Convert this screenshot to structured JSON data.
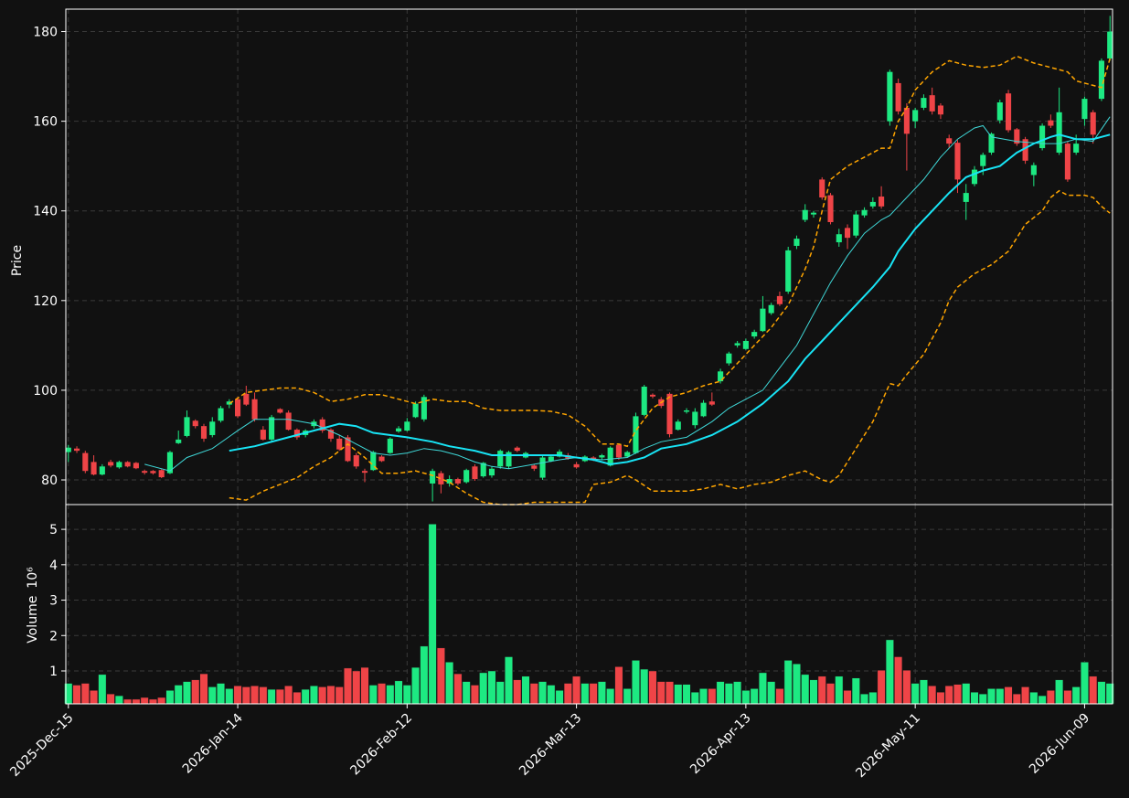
{
  "chart_data": [
    {
      "type": "candlestick",
      "ylabel": "Price",
      "categories": [
        "2025-Dec-15",
        null,
        null,
        null,
        null,
        null,
        null,
        null,
        null,
        null,
        null,
        null,
        null,
        null,
        null,
        null,
        null,
        null,
        null,
        null,
        "2026-Jan-14",
        null,
        null,
        null,
        null,
        null,
        null,
        null,
        null,
        null,
        null,
        null,
        null,
        null,
        null,
        null,
        null,
        null,
        null,
        null,
        "2026-Feb-12",
        null,
        null,
        null,
        null,
        null,
        null,
        null,
        null,
        null,
        null,
        null,
        null,
        null,
        null,
        null,
        null,
        null,
        null,
        null,
        "2026-Mar-13",
        null,
        null,
        null,
        null,
        null,
        null,
        null,
        null,
        null,
        null,
        null,
        null,
        null,
        null,
        null,
        null,
        null,
        null,
        null,
        "2026-Apr-13",
        null,
        null,
        null,
        null,
        null,
        null,
        null,
        null,
        null,
        null,
        null,
        null,
        null,
        null,
        null,
        null,
        null,
        null,
        null,
        "2026-May-11",
        null,
        null,
        null,
        null,
        null,
        null,
        null,
        null,
        null,
        null,
        null,
        null,
        null,
        null,
        null,
        null,
        null,
        null,
        null,
        "2026-Jun-09",
        null,
        null,
        null
      ],
      "open": [
        86.2,
        87.0,
        86.0,
        84.0,
        81.2,
        84.0,
        82.8,
        84.0,
        83.8,
        82.0,
        82.0,
        82.2,
        81.5,
        88.2,
        89.8,
        93.2,
        92.0,
        90.0,
        93.2,
        96.8,
        98.0,
        99.2,
        98.0,
        91.2,
        89.0,
        95.8,
        95.0,
        91.2,
        90.0,
        92.0,
        93.5,
        91.2,
        89.2,
        89.5,
        85.5,
        82.0,
        82.2,
        85.2,
        86.0,
        90.8,
        91.0,
        94.0,
        93.5,
        79.2,
        81.5,
        79.2,
        80.2,
        79.5,
        83.0,
        80.8,
        81.0,
        83.0,
        83.0,
        87.2,
        85.0,
        83.2,
        80.5,
        84.2,
        85.2,
        85.5,
        83.5,
        84.2,
        85.0,
        85.0,
        83.2,
        87.8,
        85.2,
        86.0,
        94.5,
        99.0,
        98.0,
        99.2,
        91.2,
        95.2,
        92.2,
        94.2,
        97.5,
        102.0,
        106.0,
        110.0,
        109.2,
        112.0,
        113.2,
        117.2,
        121.0,
        122.0,
        132.2,
        138.0,
        139.2,
        147.0,
        143.5,
        133.0,
        136.2,
        134.5,
        139.0,
        141.0,
        143.2,
        160.0,
        168.5,
        163.0,
        160.0,
        163.0,
        165.8,
        163.5,
        156.2,
        155.2,
        142.0,
        146.0,
        150.0,
        153.0,
        160.2,
        166.2,
        158.2,
        156.0,
        148.0,
        154.0,
        160.2,
        153.0,
        155.0,
        153.0,
        160.5,
        162.0,
        165.0,
        174.0
      ],
      "high": [
        87.8,
        87.5,
        86.5,
        85.5,
        83.5,
        84.5,
        84.3,
        84.2,
        84.0,
        82.3,
        82.2,
        82.4,
        86.5,
        91.0,
        95.5,
        93.5,
        92.5,
        94.0,
        96.5,
        98.0,
        98.5,
        101.0,
        99.5,
        92.0,
        94.5,
        96.0,
        95.5,
        91.5,
        91.3,
        93.5,
        94.0,
        91.5,
        90.0,
        90.0,
        86.0,
        82.5,
        86.5,
        85.5,
        89.5,
        92.0,
        93.8,
        97.5,
        99.0,
        82.5,
        82.0,
        81.0,
        80.5,
        82.5,
        83.5,
        84.0,
        83.0,
        86.8,
        86.5,
        87.5,
        86.3,
        83.5,
        85.5,
        85.5,
        86.8,
        86.0,
        84.0,
        85.5,
        85.3,
        85.8,
        87.5,
        88.0,
        86.5,
        95.0,
        101.2,
        99.3,
        98.5,
        99.5,
        93.5,
        96.0,
        96.0,
        97.8,
        99.5,
        104.8,
        108.6,
        111.0,
        111.5,
        113.5,
        121.0,
        119.5,
        122.0,
        132.0,
        134.5,
        141.5,
        140.0,
        147.5,
        144.0,
        136.0,
        137.0,
        140.0,
        140.8,
        143.0,
        145.5,
        171.5,
        169.5,
        164.0,
        163.0,
        166.0,
        167.5,
        164.0,
        157.0,
        155.8,
        146.0,
        150.0,
        153.0,
        157.5,
        164.8,
        167.0,
        158.5,
        156.5,
        150.8,
        159.5,
        161.5,
        167.5,
        155.5,
        157.0,
        165.5,
        162.5,
        174.0,
        183.5
      ],
      "low": [
        84.0,
        86.0,
        81.5,
        81.0,
        81.0,
        82.8,
        82.5,
        82.8,
        82.4,
        81.2,
        81.2,
        80.4,
        81.3,
        88.0,
        89.5,
        91.5,
        88.5,
        89.5,
        92.8,
        96.0,
        93.8,
        96.5,
        93.0,
        88.8,
        88.5,
        94.8,
        91.0,
        89.0,
        89.5,
        91.5,
        90.5,
        88.5,
        86.5,
        84.0,
        82.5,
        79.5,
        82.0,
        84.0,
        85.8,
        90.5,
        90.8,
        93.8,
        93.0,
        75.2,
        77.0,
        78.5,
        78.8,
        79.2,
        79.8,
        80.5,
        80.5,
        82.5,
        82.5,
        86.2,
        84.8,
        82.0,
        80.0,
        84.0,
        85.0,
        84.5,
        82.5,
        84.0,
        84.2,
        84.5,
        83.0,
        84.5,
        85.0,
        85.8,
        94.2,
        98.2,
        96.0,
        89.5,
        91.0,
        94.8,
        91.5,
        94.0,
        96.5,
        101.5,
        105.5,
        109.5,
        109.0,
        111.5,
        113.0,
        116.8,
        118.8,
        121.5,
        131.5,
        137.5,
        138.5,
        142.5,
        137.0,
        132.0,
        131.5,
        134.0,
        138.5,
        140.5,
        140.5,
        159.0,
        161.5,
        149.0,
        158.5,
        162.5,
        161.5,
        160.5,
        154.0,
        144.0,
        138.0,
        145.5,
        148.0,
        152.5,
        159.5,
        157.5,
        154.5,
        150.5,
        145.5,
        153.5,
        158.5,
        152.5,
        146.5,
        152.5,
        159.0,
        155.0,
        164.5,
        173.5
      ],
      "close": [
        87.2,
        86.5,
        82.0,
        81.2,
        83.0,
        83.2,
        84.0,
        83.0,
        82.6,
        81.6,
        81.5,
        80.6,
        86.2,
        89.0,
        94.0,
        92.0,
        89.2,
        93.0,
        96.0,
        97.5,
        94.2,
        96.8,
        93.5,
        89.0,
        94.0,
        95.0,
        91.2,
        89.5,
        91.0,
        93.0,
        91.0,
        89.2,
        86.8,
        84.2,
        83.0,
        81.6,
        86.2,
        84.2,
        89.2,
        91.5,
        93.0,
        97.0,
        98.5,
        82.0,
        79.0,
        80.2,
        79.2,
        82.2,
        80.2,
        83.8,
        82.5,
        86.5,
        86.2,
        86.5,
        86.0,
        82.5,
        85.0,
        85.2,
        86.3,
        84.8,
        82.8,
        85.2,
        84.5,
        85.5,
        87.2,
        85.0,
        86.2,
        94.2,
        100.8,
        98.6,
        96.5,
        90.2,
        93.0,
        95.5,
        95.2,
        97.2,
        96.8,
        104.2,
        108.2,
        110.5,
        111.0,
        113.0,
        118.2,
        119.0,
        119.2,
        131.2,
        133.8,
        140.2,
        139.6,
        143.0,
        137.5,
        134.8,
        134.0,
        139.2,
        140.2,
        142.0,
        141.0,
        171.0,
        162.2,
        157.2,
        162.5,
        165.2,
        162.2,
        161.5,
        155.0,
        147.0,
        144.0,
        149.2,
        152.5,
        157.2,
        164.2,
        158.0,
        155.0,
        151.2,
        150.2,
        159.0,
        159.0,
        162.0,
        147.0,
        155.0,
        165.0,
        157.0,
        173.5,
        180.0
      ],
      "up_color": "#1de982",
      "down_color": "#ef4447",
      "xlim": [
        -0.3,
        123.3
      ],
      "ylim": [
        74.5,
        185
      ],
      "yticks": [
        80,
        100,
        120,
        140,
        160,
        180
      ],
      "grid": true,
      "overlays": [
        {
          "color": "#3fd8d8",
          "width": 1,
          "dash": false,
          "x": [
            9,
            12,
            14,
            17,
            20,
            22,
            26,
            29,
            32,
            34,
            36,
            38,
            40,
            42,
            44,
            46,
            48,
            50,
            52,
            55,
            58,
            60,
            63,
            66,
            68,
            70,
            73,
            76,
            78,
            80,
            82,
            84,
            86,
            88,
            90,
            92,
            94,
            96,
            97,
            99,
            101,
            103,
            105,
            107,
            108,
            109,
            112,
            115,
            117,
            119,
            121,
            123
          ],
          "values": [
            83.5,
            82,
            85,
            87,
            91,
            93.5,
            93.5,
            92.5,
            90,
            88,
            86,
            85.5,
            86,
            87,
            86.5,
            85.5,
            84,
            83,
            82.5,
            83.5,
            84.5,
            85,
            84.5,
            85,
            87,
            88.5,
            89.5,
            93,
            96,
            98,
            100,
            105,
            110,
            117,
            124,
            130,
            135,
            138,
            139,
            143,
            147,
            152,
            156,
            158.5,
            159,
            156.5,
            155.5,
            155,
            155,
            156,
            155.5,
            161
          ]
        },
        {
          "color": "#18e4f5",
          "width": 2,
          "dash": false,
          "x": [
            19,
            22,
            26,
            30,
            32,
            34,
            36,
            40,
            43,
            45,
            48,
            50,
            54,
            58,
            62,
            64,
            66,
            68,
            70,
            73,
            76,
            79,
            82,
            85,
            87,
            89,
            91,
            93,
            95,
            97,
            98,
            100,
            102,
            104,
            106,
            108,
            110,
            112,
            114,
            116,
            117,
            119,
            121,
            123
          ],
          "values": [
            86.5,
            87.5,
            89.5,
            91.5,
            92.5,
            92,
            90.5,
            89.5,
            88.5,
            87.5,
            86.5,
            85.5,
            85.5,
            85.5,
            84.5,
            83.5,
            84,
            85,
            87,
            88,
            90,
            93,
            97,
            102,
            107,
            111,
            115,
            119,
            123,
            127.5,
            131,
            136,
            140,
            144,
            147.5,
            149,
            150,
            153,
            155,
            156.5,
            157,
            156,
            156,
            157
          ]
        },
        {
          "color": "#ffa500",
          "width": 1.5,
          "dash": true,
          "x": [
            19,
            21,
            23,
            25,
            27,
            29,
            31,
            33,
            35,
            37,
            39,
            41,
            43,
            45,
            47,
            49,
            51,
            53,
            55,
            57,
            59,
            61,
            63,
            65,
            66,
            67,
            69,
            71,
            73,
            75,
            77,
            79,
            81,
            83,
            85,
            87,
            88,
            89,
            90,
            92,
            94,
            96,
            97,
            98,
            99,
            100,
            102,
            104,
            106,
            108,
            110,
            112,
            114,
            116,
            118,
            119,
            121,
            122,
            123
          ],
          "values": [
            97,
            99.5,
            100,
            100.5,
            100.5,
            99.5,
            97.5,
            98,
            99,
            99,
            98,
            97,
            98,
            97.5,
            97.5,
            96,
            95.5,
            95.5,
            95.5,
            95.3,
            94.5,
            92,
            88,
            88,
            87.5,
            91,
            96,
            98.5,
            99.5,
            101,
            102,
            106,
            110,
            114,
            119,
            127,
            132,
            140,
            147,
            150,
            152,
            154,
            154,
            160,
            163,
            167,
            171,
            173.5,
            172.5,
            172,
            172.5,
            174.5,
            173,
            172,
            171,
            169,
            168,
            167.5,
            174
          ]
        },
        {
          "color": "#ffa500",
          "width": 1.5,
          "dash": true,
          "x": [
            19,
            21,
            23,
            25,
            27,
            29,
            31,
            33,
            35,
            37,
            39,
            41,
            43,
            45,
            47,
            49,
            51,
            53,
            55,
            57,
            59,
            61,
            62,
            64,
            66,
            67,
            69,
            71,
            73,
            75,
            77,
            79,
            81,
            83,
            85,
            87,
            89,
            90,
            91,
            93,
            95,
            97,
            98,
            99,
            101,
            103,
            104,
            105,
            107,
            109,
            111,
            113,
            115,
            116,
            117,
            118,
            120,
            121,
            122,
            123
          ],
          "values": [
            76,
            75.5,
            77.5,
            79,
            80.5,
            83,
            85,
            88,
            85,
            81.5,
            81.5,
            82,
            81,
            79.5,
            77,
            75,
            74.5,
            74.5,
            75,
            75,
            75,
            75,
            79,
            79.5,
            81,
            80,
            77.5,
            77.5,
            77.5,
            78,
            79,
            78,
            79,
            79.5,
            81,
            82,
            80,
            79.5,
            81,
            87,
            93,
            101.5,
            101,
            103.5,
            108,
            115,
            120,
            123,
            126,
            128,
            131,
            137,
            140,
            143,
            144.5,
            143.5,
            143.5,
            143,
            141,
            139.5
          ]
        }
      ]
    },
    {
      "type": "bar",
      "ylabel": "Volume",
      "scale_label": "10⁶",
      "values": [
        0.65,
        0.6,
        0.65,
        0.45,
        0.9,
        0.35,
        0.3,
        0.2,
        0.2,
        0.25,
        0.2,
        0.25,
        0.45,
        0.6,
        0.7,
        0.75,
        0.92,
        0.55,
        0.65,
        0.5,
        0.58,
        0.55,
        0.58,
        0.55,
        0.48,
        0.48,
        0.58,
        0.4,
        0.48,
        0.58,
        0.55,
        0.58,
        0.55,
        1.08,
        1.0,
        1.1,
        0.6,
        0.65,
        0.6,
        0.72,
        0.6,
        1.1,
        1.7,
        5.15,
        1.65,
        1.25,
        0.92,
        0.7,
        0.6,
        0.95,
        1.0,
        0.7,
        1.4,
        0.75,
        0.85,
        0.65,
        0.7,
        0.6,
        0.45,
        0.65,
        0.85,
        0.65,
        0.65,
        0.7,
        0.5,
        1.12,
        0.5,
        1.3,
        1.05,
        1.0,
        0.7,
        0.7,
        0.62,
        0.62,
        0.4,
        0.5,
        0.5,
        0.7,
        0.65,
        0.7,
        0.45,
        0.5,
        0.95,
        0.7,
        0.5,
        1.3,
        1.2,
        0.9,
        0.75,
        0.85,
        0.65,
        0.85,
        0.45,
        0.8,
        0.35,
        0.4,
        1.02,
        1.88,
        1.4,
        1.02,
        0.65,
        0.75,
        0.58,
        0.4,
        0.58,
        0.62,
        0.65,
        0.4,
        0.35,
        0.5,
        0.5,
        0.55,
        0.35,
        0.55,
        0.4,
        0.3,
        0.45,
        0.75,
        0.45,
        0.55,
        1.25,
        0.85,
        0.7,
        0.65
      ],
      "ylim": [
        0.07,
        5.7
      ],
      "yticks": [
        1,
        2,
        3,
        4,
        5
      ],
      "grid": true
    }
  ]
}
